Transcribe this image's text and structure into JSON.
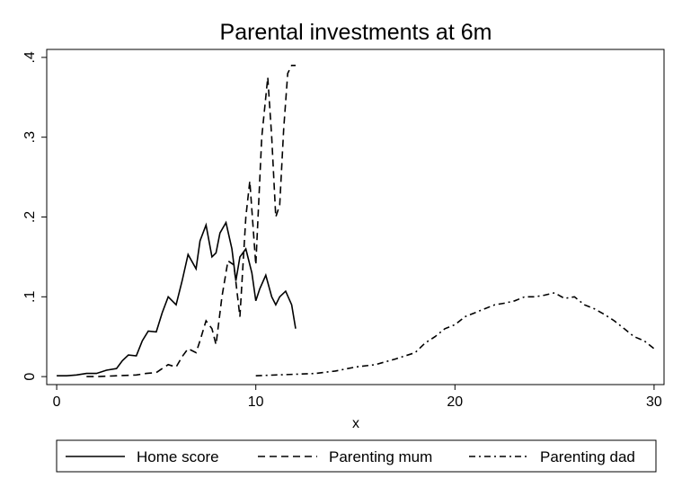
{
  "chart_data": {
    "type": "line",
    "title": "Parental investments at 6m",
    "xlabel": "x",
    "ylabel": "",
    "xlim": [
      -0.5,
      30.5
    ],
    "ylim": [
      -0.01,
      0.41
    ],
    "xticks": [
      0,
      10,
      20,
      30
    ],
    "xtick_labels": [
      "0",
      "10",
      "20",
      "30"
    ],
    "yticks": [
      0,
      0.1,
      0.2,
      0.3,
      0.4
    ],
    "ytick_labels": [
      "0",
      ".1",
      ".2",
      ".3",
      ".4"
    ],
    "grid": false,
    "legend_position": "bottom",
    "series": [
      {
        "name": "Home score",
        "dash": "solid",
        "x": [
          0,
          0.5,
          1,
          1.5,
          2,
          2.5,
          3,
          3.3,
          3.6,
          4,
          4.3,
          4.6,
          5,
          5.3,
          5.6,
          6,
          6.3,
          6.6,
          7,
          7.2,
          7.5,
          7.8,
          8,
          8.2,
          8.5,
          8.8,
          9,
          9.2,
          9.5,
          9.8,
          10,
          10.2,
          10.5,
          10.8,
          11,
          11.2,
          11.5,
          11.8,
          12
        ],
        "y": [
          0.001,
          0.001,
          0.002,
          0.004,
          0.004,
          0.008,
          0.01,
          0.02,
          0.027,
          0.026,
          0.045,
          0.057,
          0.056,
          0.08,
          0.1,
          0.09,
          0.12,
          0.153,
          0.135,
          0.17,
          0.19,
          0.15,
          0.155,
          0.18,
          0.193,
          0.16,
          0.12,
          0.15,
          0.16,
          0.13,
          0.095,
          0.11,
          0.127,
          0.1,
          0.09,
          0.1,
          0.107,
          0.09,
          0.06
        ]
      },
      {
        "name": "Parenting mum",
        "dash": "dashed",
        "x": [
          1.5,
          2,
          3,
          4,
          4.5,
          5,
          5.3,
          5.6,
          6,
          6.3,
          6.6,
          7,
          7.2,
          7.5,
          7.8,
          8,
          8.3,
          8.6,
          8.9,
          9.2,
          9.5,
          9.7,
          10,
          10.3,
          10.6,
          10.8,
          11,
          11.2,
          11.4,
          11.6,
          11.8,
          12
        ],
        "y": [
          0,
          0,
          0.001,
          0.002,
          0.004,
          0.005,
          0.01,
          0.015,
          0.012,
          0.025,
          0.035,
          0.03,
          0.045,
          0.07,
          0.06,
          0.04,
          0.1,
          0.145,
          0.14,
          0.075,
          0.2,
          0.245,
          0.14,
          0.3,
          0.375,
          0.3,
          0.2,
          0.215,
          0.31,
          0.38,
          0.39,
          0.39
        ]
      },
      {
        "name": "Parenting dad",
        "dash": "dash-dot",
        "x": [
          10,
          11,
          12,
          13,
          14,
          15,
          16,
          17,
          18,
          18.5,
          19,
          19.5,
          20,
          20.5,
          21,
          21.5,
          22,
          22.5,
          23,
          23.5,
          24,
          24.5,
          25,
          25.5,
          26,
          26.5,
          27,
          27.5,
          28,
          28.5,
          29,
          29.5,
          30
        ],
        "y": [
          0.001,
          0.002,
          0.003,
          0.004,
          0.007,
          0.012,
          0.015,
          0.022,
          0.03,
          0.042,
          0.05,
          0.06,
          0.065,
          0.075,
          0.08,
          0.085,
          0.09,
          0.092,
          0.095,
          0.1,
          0.1,
          0.102,
          0.105,
          0.098,
          0.1,
          0.09,
          0.085,
          0.078,
          0.07,
          0.06,
          0.05,
          0.045,
          0.035
        ]
      }
    ]
  }
}
